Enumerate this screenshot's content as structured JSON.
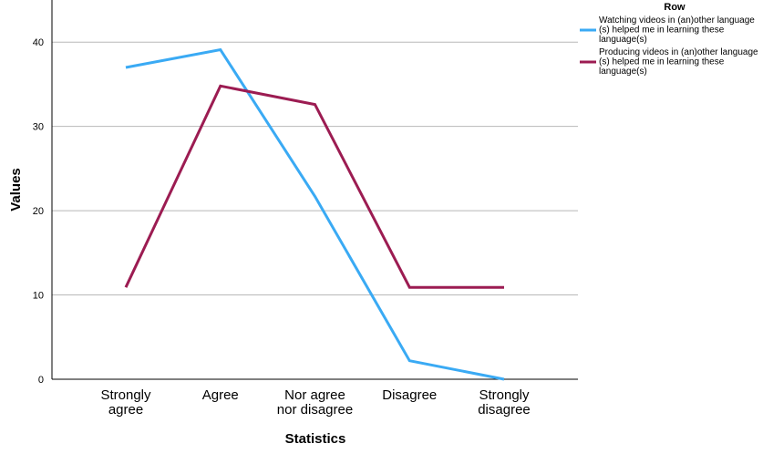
{
  "chart_data": {
    "type": "line",
    "xlabel": "Statistics",
    "ylabel": "Values",
    "categories": [
      [
        "Strongly",
        "agree"
      ],
      [
        "Agree"
      ],
      [
        "Nor agree",
        "nor disagree"
      ],
      [
        "Disagree"
      ],
      [
        "Strongly",
        "disagree"
      ]
    ],
    "ylim": [
      0,
      45
    ],
    "yticks": [
      0,
      10,
      20,
      30,
      40
    ],
    "grid": true,
    "legend": {
      "title": "Row",
      "position": "top-right"
    },
    "series": [
      {
        "name": "Watching videos in (an)other language (s) helped me in learning these language(s)",
        "name_lines": [
          "Watching videos in (an)other language",
          "(s) helped me in learning these",
          "language(s)"
        ],
        "color": "#3aaaf4",
        "values": [
          37,
          39.1,
          21.7,
          2.2,
          0
        ]
      },
      {
        "name": "Producing videos in (an)other language (s) helped me in learning these language(s)",
        "name_lines": [
          "Producing videos in (an)other language",
          "(s) helped me in learning these",
          "language(s)"
        ],
        "color": "#9c1c52",
        "values": [
          10.9,
          34.8,
          32.6,
          10.9,
          10.9
        ]
      }
    ]
  }
}
